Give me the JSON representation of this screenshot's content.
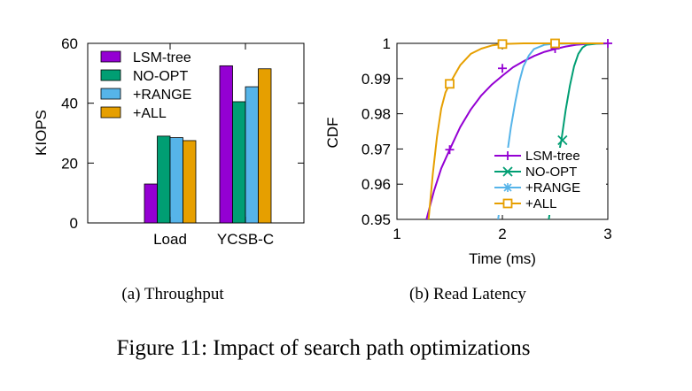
{
  "figure_caption": "Figure 11: Impact of search path optimizations",
  "colors": {
    "lsm_tree": "#9400d3",
    "no_opt": "#009e73",
    "range": "#56b4e9",
    "all": "#e69f00"
  },
  "chart_data": [
    {
      "type": "bar",
      "caption": "(a) Throughput",
      "title": "",
      "xlabel": "",
      "ylabel": "KIOPS",
      "ylim": [
        0,
        60
      ],
      "yticks": [
        "0",
        "20",
        "40",
        "60"
      ],
      "legend_position": "top-right",
      "categories": [
        "Load",
        "YCSB-C"
      ],
      "series": [
        {
          "name": "LSM-tree",
          "color_key": "lsm_tree",
          "values": [
            13,
            52.5
          ]
        },
        {
          "name": "NO-OPT",
          "color_key": "no_opt",
          "values": [
            29,
            40.5
          ]
        },
        {
          "name": "+RANGE",
          "color_key": "range",
          "values": [
            28.5,
            45.5
          ]
        },
        {
          "name": "+ALL",
          "color_key": "all",
          "values": [
            27.5,
            51.5
          ]
        }
      ]
    },
    {
      "type": "line",
      "caption": "(b) Read Latency",
      "title": "",
      "xlabel": "Time (ms)",
      "ylabel": "CDF",
      "xlim": [
        1,
        3
      ],
      "ylim": [
        0.95,
        1.0
      ],
      "xticks": [
        "1",
        "2",
        "3"
      ],
      "yticks": [
        "0.95",
        "0.96",
        "0.97",
        "0.98",
        "0.99",
        "1"
      ],
      "legend_position": "bottom-right",
      "series": [
        {
          "name": "LSM-tree",
          "color_key": "lsm_tree",
          "marker": "plus",
          "x": [
            1.28,
            1.35,
            1.42,
            1.5,
            1.6,
            1.7,
            1.8,
            1.9,
            2.0,
            2.1,
            2.2,
            2.3,
            2.4,
            2.5,
            2.6,
            2.7,
            2.8,
            2.9,
            3.0
          ],
          "y": [
            0.95,
            0.958,
            0.9645,
            0.9698,
            0.9762,
            0.9812,
            0.9852,
            0.9883,
            0.9908,
            0.9932,
            0.9949,
            0.9964,
            0.9976,
            0.9984,
            0.9991,
            0.9996,
            0.9998,
            0.9999,
            1.0
          ],
          "marker_x": [
            1.5,
            2.0,
            2.5,
            3.0
          ],
          "marker_y": [
            0.9698,
            0.9929,
            0.9985,
            1.0
          ]
        },
        {
          "name": "NO-OPT",
          "color_key": "no_opt",
          "marker": "x",
          "x": [
            2.44,
            2.48,
            2.52,
            2.56,
            2.6,
            2.64,
            2.68,
            2.72,
            2.76,
            2.8,
            2.9,
            3.0
          ],
          "y": [
            0.95,
            0.9585,
            0.9665,
            0.9725,
            0.981,
            0.988,
            0.9935,
            0.997,
            0.9988,
            0.9996,
            0.9999,
            1.0
          ],
          "marker_x": [
            2.57
          ],
          "marker_y": [
            0.9725
          ]
        },
        {
          "name": "+RANGE",
          "color_key": "range",
          "marker": "star",
          "x": [
            1.96,
            2.0,
            2.04,
            2.08,
            2.12,
            2.16,
            2.2,
            2.25,
            2.3,
            2.4,
            2.5,
            3.0
          ],
          "y": [
            0.95,
            0.959,
            0.9675,
            0.976,
            0.983,
            0.989,
            0.9935,
            0.9965,
            0.9984,
            0.9996,
            0.9999,
            1.0
          ],
          "marker_x": [
            2.5
          ],
          "marker_y": [
            0.9999
          ]
        },
        {
          "name": "+ALL",
          "color_key": "all",
          "marker": "square",
          "x": [
            1.3,
            1.34,
            1.38,
            1.42,
            1.46,
            1.5,
            1.55,
            1.6,
            1.7,
            1.8,
            1.9,
            2.0,
            2.2,
            2.5,
            3.0
          ],
          "y": [
            0.95,
            0.963,
            0.9735,
            0.9815,
            0.986,
            0.9885,
            0.9912,
            0.9938,
            0.997,
            0.9985,
            0.9994,
            0.9998,
            1.0,
            1.0,
            1.0
          ],
          "marker_x": [
            1.5,
            2.0,
            2.5
          ],
          "marker_y": [
            0.9885,
            0.9998,
            1.0
          ]
        }
      ]
    }
  ]
}
